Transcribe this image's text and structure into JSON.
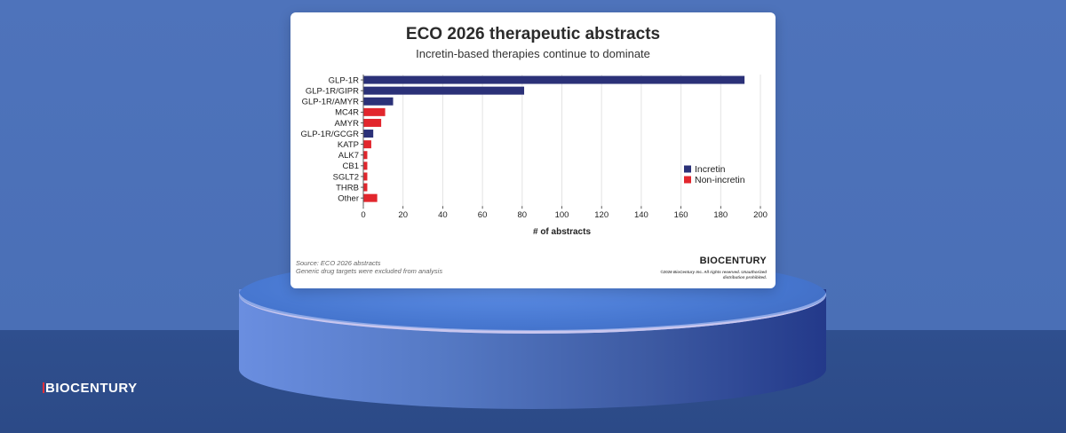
{
  "page": {
    "brand": "BIOCENTURY"
  },
  "card": {
    "source_line": "Source: ECO 2026 abstracts",
    "note_line": "Generic drug targets were excluded from analysis",
    "brand": "BIOCENTURY",
    "copyright": "©2026 BioCentury Inc. All rights reserved. Unauthorized distribution prohibited."
  },
  "chart_data": {
    "type": "bar",
    "orientation": "horizontal",
    "title": "ECO 2026 therapeutic abstracts",
    "subtitle": "Incretin-based therapies continue to dominate",
    "xlabel": "# of abstracts",
    "ylabel": "",
    "xlim": [
      0,
      200
    ],
    "xticks": [
      0,
      20,
      40,
      60,
      80,
      100,
      120,
      140,
      160,
      180,
      200
    ],
    "grid": true,
    "legend_position": "right",
    "categories": [
      "GLP-1R",
      "GLP-1R/GIPR",
      "GLP-1R/AMYR",
      "MC4R",
      "AMYR",
      "GLP-1R/GCGR",
      "KATP",
      "ALK7",
      "CB1",
      "SGLT2",
      "THRB",
      "Other"
    ],
    "values": [
      192,
      81,
      15,
      11,
      9,
      5,
      4,
      2,
      2,
      2,
      2,
      7
    ],
    "groups": [
      "Incretin",
      "Incretin",
      "Incretin",
      "Non-incretin",
      "Non-incretin",
      "Incretin",
      "Non-incretin",
      "Non-incretin",
      "Non-incretin",
      "Non-incretin",
      "Non-incretin",
      "Non-incretin"
    ],
    "legend": [
      {
        "name": "Incretin",
        "color": "#2b3178"
      },
      {
        "name": "Non-incretin",
        "color": "#e2262d"
      }
    ]
  }
}
